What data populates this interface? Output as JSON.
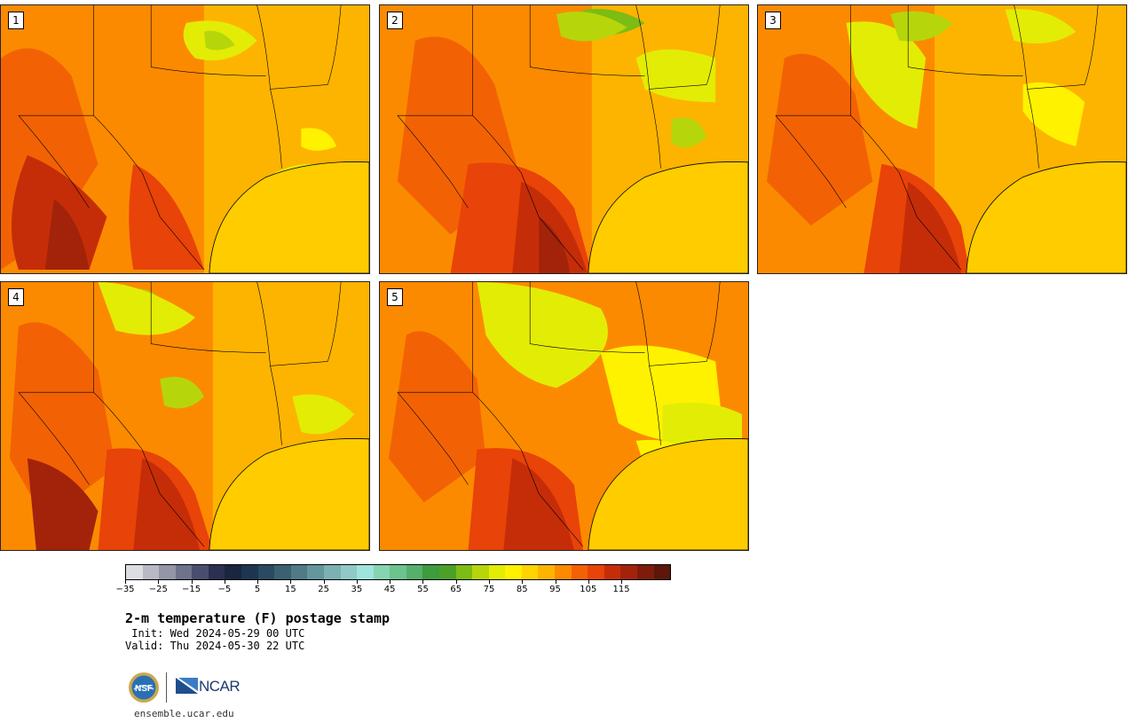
{
  "panels": [
    {
      "label": "1",
      "variant": 0
    },
    {
      "label": "2",
      "variant": 1
    },
    {
      "label": "3",
      "variant": 2
    },
    {
      "label": "4",
      "variant": 3
    },
    {
      "label": "5",
      "variant": 4
    }
  ],
  "colorbar": {
    "colors": [
      "#dcdde2",
      "#b8b9c5",
      "#9496a8",
      "#6f728b",
      "#4a4e6e",
      "#2b2f52",
      "#1a2540",
      "#1e3552",
      "#2a4a62",
      "#3b6070",
      "#4f7b86",
      "#64969d",
      "#7bb1b3",
      "#8fcac6",
      "#9fe4dc",
      "#86d5b0",
      "#6cc38e",
      "#56b06c",
      "#3e9b3e",
      "#4ba128",
      "#7cbc14",
      "#b6d60b",
      "#e3ec05",
      "#fff200",
      "#ffd400",
      "#fdb400",
      "#fc8a00",
      "#f26205",
      "#e84308",
      "#c52d08",
      "#a2230a",
      "#7e1b0a",
      "#5c160a"
    ],
    "ticks": [
      "−35",
      "−25",
      "−15",
      "−5",
      "5",
      "15",
      "25",
      "35",
      "45",
      "55",
      "65",
      "75",
      "85",
      "95",
      "105",
      "115"
    ]
  },
  "title": "2-m temperature (F) postage stamp",
  "init": " Init: Wed 2024-05-29 00 UTC",
  "valid": "Valid: Thu 2024-05-30 22 UTC",
  "website": "ensemble.ucar.edu",
  "logos": {
    "nsf": "NSF",
    "ncar": "NCAR"
  }
}
